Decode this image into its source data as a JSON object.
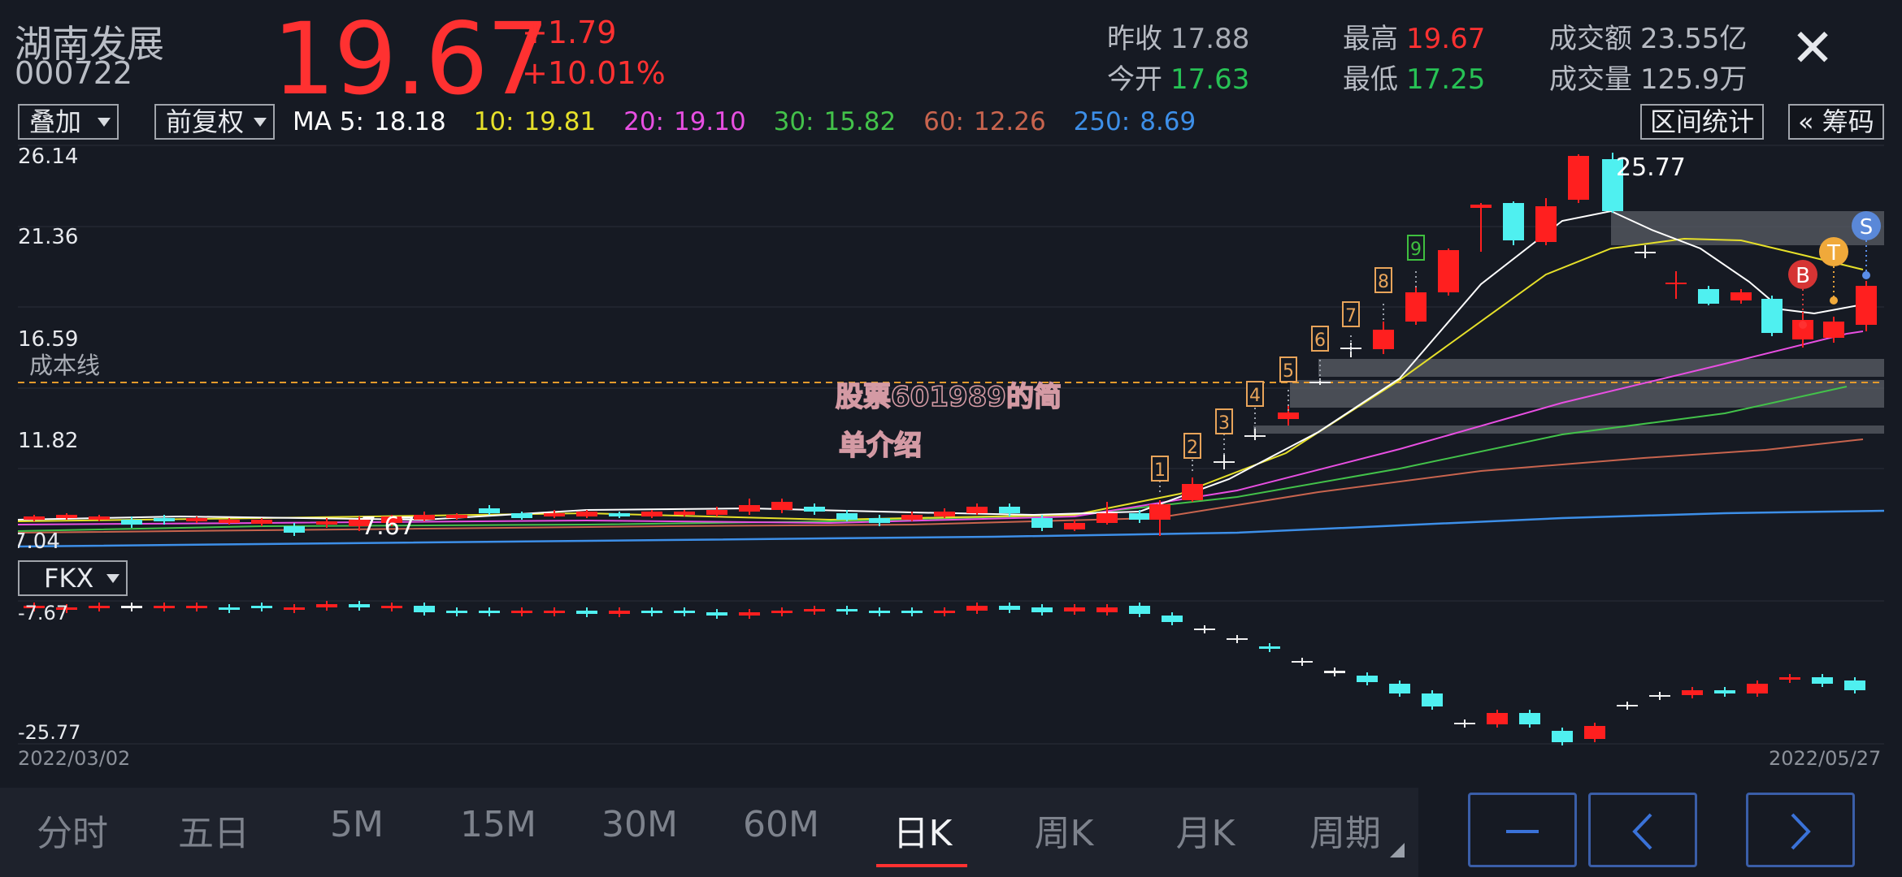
{
  "header": {
    "name": "湖南发展",
    "code": "000722",
    "price": "19.67",
    "change": "+1.79",
    "change_pct": "+10.01%",
    "prev_close_label": "昨收",
    "prev_close": "17.88",
    "open_label": "今开",
    "open": "17.63",
    "high_label": "最高",
    "high": "19.67",
    "low_label": "最低",
    "low": "17.25",
    "turnover_label": "成交额",
    "turnover": "23.55亿",
    "volume_label": "成交量",
    "volume": "125.9万",
    "close_icon": "close-icon"
  },
  "toolbar": {
    "overlay": "叠加",
    "adjust": "前复权",
    "ma": {
      "ma5_label": "MA 5:",
      "ma5": "18.18",
      "ma10_label": "10:",
      "ma10": "19.81",
      "ma20_label": "20:",
      "ma20": "19.10",
      "ma30_label": "30:",
      "ma30": "15.82",
      "ma60_label": "60:",
      "ma60": "12.26",
      "ma250_label": "250:",
      "ma250": "8.69"
    },
    "range_stats": "区间统计",
    "chips": "« 筹码",
    "colors": {
      "ma5": "#ffffff",
      "ma10": "#e6e02a",
      "ma20": "#e84fe2",
      "ma30": "#43c24a",
      "ma60": "#c8644e",
      "ma250": "#3d8fe8"
    }
  },
  "kline": {
    "y_ticks": [
      "26.14",
      "21.36",
      "16.59",
      "11.82",
      "7.04"
    ],
    "cost_line_label": "成本线",
    "min_label": "7.67",
    "max_label": "25.77",
    "watermark_line1": "股票601989的简",
    "watermark_line2": "单介绍",
    "count_labels": [
      "1",
      "2",
      "3",
      "4",
      "5",
      "6",
      "7",
      "8",
      "9"
    ],
    "signals": [
      "B",
      "T",
      "S"
    ],
    "date_start": "2022/03/02",
    "date_end": "2022/05/27"
  },
  "indicator": {
    "selector": "FKX",
    "y_top": "-7.67",
    "y_bottom": "-25.77"
  },
  "tabs": [
    "分时",
    "五日",
    "5M",
    "15M",
    "30M",
    "60M",
    "日K",
    "周K",
    "月K",
    "周期"
  ],
  "active_tab": "日K",
  "nav": {
    "minus_icon": "minus-icon",
    "prev_icon": "chevron-left-icon",
    "next_icon": "chevron-right-icon"
  }
}
